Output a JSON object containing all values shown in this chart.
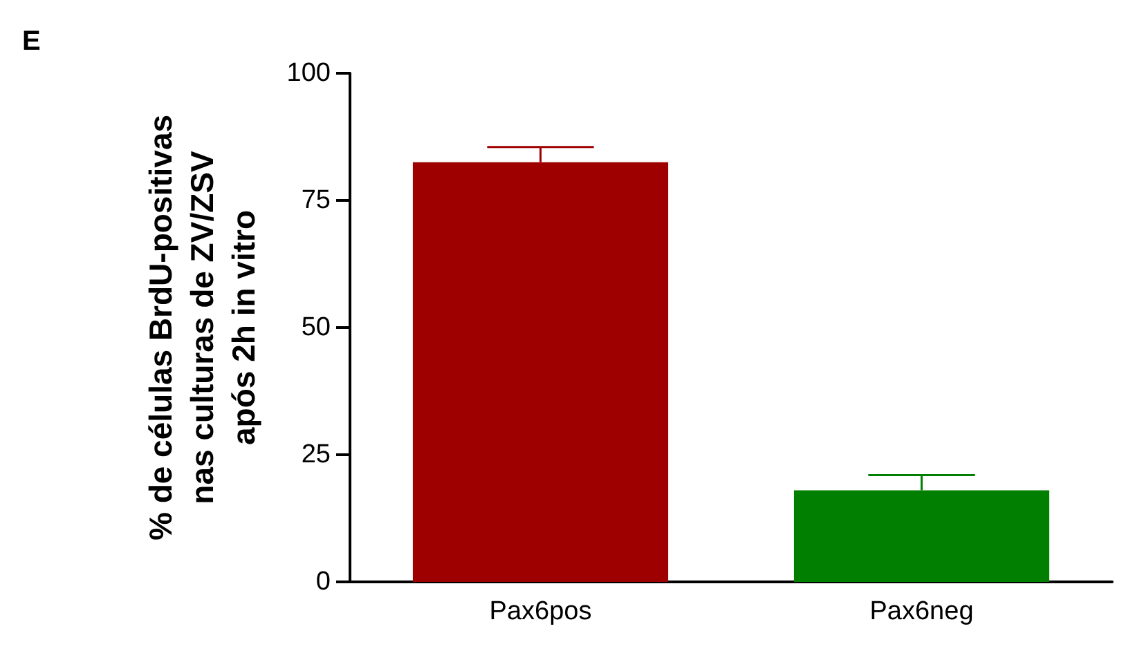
{
  "chart_data": {
    "type": "bar",
    "ylabel": "% de células BrdU-positivas\nnas culturas de ZV/ZSV\napós 2h in vitro",
    "annotations": [
      "E"
    ],
    "categories": [
      "Pax6pos",
      "Pax6neg"
    ],
    "values": [
      82.5,
      18
    ],
    "colors": [
      "#9e0000",
      "#007f00"
    ],
    "errors": [
      [
        82.5,
        85.5
      ],
      [
        18,
        21
      ]
    ],
    "ylim": [
      0,
      100
    ],
    "yticks": [
      0,
      25,
      50,
      75,
      100
    ],
    "grid": false
  }
}
